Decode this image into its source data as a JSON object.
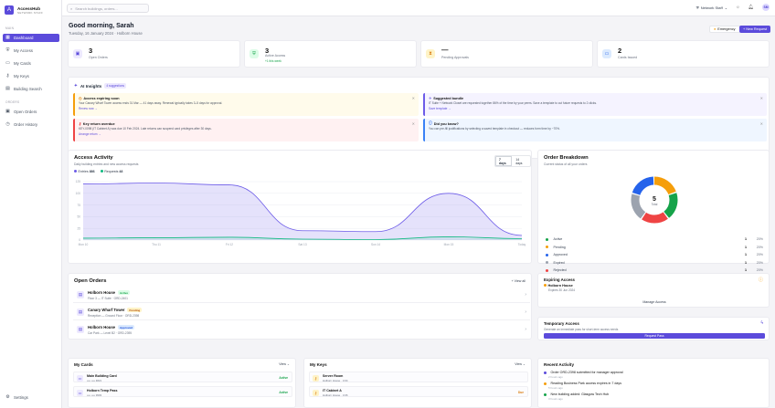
{
  "brand": {
    "name": "AccessHub",
    "sub": "NETWORK STAFF",
    "logo": "A"
  },
  "nav": {
    "main_label": "MAIN",
    "orders_label": "ORDERS",
    "items": [
      {
        "label": "Dashboard",
        "icon": "grid-icon"
      },
      {
        "label": "My Access",
        "icon": "shield-icon"
      },
      {
        "label": "My Cards",
        "icon": "card-icon"
      },
      {
        "label": "My Keys",
        "icon": "key-icon"
      },
      {
        "label": "Building Search",
        "icon": "building-icon"
      }
    ],
    "order_items": [
      {
        "label": "Open Orders",
        "icon": "clipboard-icon"
      },
      {
        "label": "Order History",
        "icon": "clock-icon"
      }
    ],
    "settings_label": "Settings"
  },
  "topbar": {
    "search_placeholder": "Search buildings, orders...",
    "staff_label": "Network Staff",
    "avatar_initials": "SM"
  },
  "header": {
    "greeting": "Good morning, Sarah",
    "subtitle": "Tuesday, 16 January 2024 · Holborn House",
    "emergency_label": "Emergency",
    "new_request_label": "+ New Request"
  },
  "stats": [
    {
      "value": "3",
      "label": "Open Orders",
      "sub": "",
      "color": "#5b4bdb",
      "bg": "#ede9fe"
    },
    {
      "value": "3",
      "label": "Active Access",
      "sub": "+1 this week",
      "color": "#16a34a",
      "bg": "#dcfce7"
    },
    {
      "value": "—",
      "label": "Pending Approvals",
      "sub": "",
      "color": "#d97706",
      "bg": "#fef3c7"
    },
    {
      "value": "2",
      "label": "Cards Issued",
      "sub": "",
      "color": "#2563eb",
      "bg": "#dbeafe"
    }
  ],
  "ai": {
    "title": "AI Insights",
    "badge": "4 suggestions",
    "insights": [
      {
        "title": "Access expiring soon",
        "text": "Your Canary Wharf Tower access ends 31 Mar — 41 days away. Renewal typically takes 3–5 days for approval.",
        "link": "Renew now →"
      },
      {
        "title": "Suggested bundle",
        "text": "IT Suite + Network Closet are requested together 86% of the time by your peers. Save a template to cut future requests to 2 clicks.",
        "link": "Save template →"
      },
      {
        "title": "Key return overdue",
        "text": "KEY-0098 (IT Cabinet A) was due 10 Feb 2024. Late returns can suspend card privileges after 30 days.",
        "link": "Arrange return →"
      },
      {
        "title": "Did you know?",
        "text": "You can pre-fill justifications by selecting a saved template in checkout — reduces form time by ~70%.",
        "link": ""
      }
    ]
  },
  "activity_chart": {
    "title": "Access Activity",
    "subtitle": "Daily building entries and new access requests",
    "toggle": [
      "7 days",
      "14 days"
    ],
    "legend": [
      {
        "label": "Entries",
        "value": "886",
        "color": "#6d5ce8"
      },
      {
        "label": "Requests",
        "value": "48",
        "color": "#10b981"
      }
    ]
  },
  "chart_data": {
    "type": "area",
    "x": [
      "Mon 10",
      "Thu 11",
      "Fri 12",
      "Sat 13",
      "Sun 14",
      "Mon 15",
      "Today"
    ],
    "y_ticks": [
      "0",
      "25",
      "50",
      "75",
      "100",
      "125"
    ],
    "ylim": [
      0,
      125
    ],
    "series": [
      {
        "name": "Entries",
        "values": [
          120,
          122,
          118,
          20,
          18,
          100,
          10
        ]
      },
      {
        "name": "Requests",
        "values": [
          4,
          5,
          6,
          2,
          1,
          7,
          3
        ]
      }
    ]
  },
  "breakdown": {
    "title": "Order Breakdown",
    "subtitle": "Current status of all your orders",
    "total": "5",
    "total_label": "Total",
    "rows": [
      {
        "label": "Active",
        "count": "1",
        "pct": "20%",
        "color": "#16a34a"
      },
      {
        "label": "Pending",
        "count": "1",
        "pct": "20%",
        "color": "#f59e0b"
      },
      {
        "label": "Approved",
        "count": "1",
        "pct": "20%",
        "color": "#2563eb"
      },
      {
        "label": "Expired",
        "count": "1",
        "pct": "20%",
        "color": "#9ca3af"
      },
      {
        "label": "Rejected",
        "count": "1",
        "pct": "20%",
        "color": "#ef4444"
      }
    ]
  },
  "open_orders": {
    "title": "Open Orders",
    "view_all": "View all",
    "rows": [
      {
        "name": "Holborn House",
        "status": "Active",
        "status_color": "#16a34a",
        "status_bg": "#dcfce7",
        "meta": "Floor 3 — IT Suite · ORD-2401"
      },
      {
        "name": "Canary Wharf Tower",
        "status": "Pending",
        "status_color": "#b45309",
        "status_bg": "#fef3c7",
        "meta": "Reception — Ground Floor · ORD-2398"
      },
      {
        "name": "Holborn House",
        "status": "Approved",
        "status_color": "#1d4ed8",
        "status_bg": "#dbeafe",
        "meta": "Car Park — Level B2 · ORD-2395"
      }
    ]
  },
  "expiring": {
    "title": "Expiring Access",
    "item_name": "Holborn House",
    "item_sub": "Expires 30 Jun 2024",
    "manage": "Manage Access"
  },
  "temp": {
    "title": "Temporary Access",
    "subtitle": "Generate an immediate pass for short-term access needs",
    "button": "Request Pass"
  },
  "cards": {
    "title": "My Cards",
    "view": "View",
    "rows": [
      {
        "name": "Main Building Card",
        "num": "•••• •••• 4821",
        "status": "Active",
        "color": "#16a34a"
      },
      {
        "name": "Holborn Temp Pass",
        "num": "•••• •••• 3903",
        "status": "Active",
        "color": "#16a34a"
      }
    ]
  },
  "keys": {
    "title": "My Keys",
    "view": "View",
    "rows": [
      {
        "name": "Server Room",
        "num": "Holborn House · 3.04",
        "status": "Active",
        "color": "#16a34a"
      },
      {
        "name": "IT Cabinet A",
        "num": "Holborn House · 3.06",
        "status": "Due",
        "color": "#d97706"
      }
    ]
  },
  "recent": {
    "title": "Recent Activity",
    "items": [
      {
        "text": "Order ORD-2398 submitted for manager approval",
        "time": "2 hours ago",
        "color": "#5b4bdb"
      },
      {
        "text": "Reading Business Park access expires in 7 days",
        "time": "5 hours ago",
        "color": "#f59e0b"
      },
      {
        "text": "New building added: Glasgow Tech Hub",
        "time": "3 hours ago",
        "color": "#16a34a"
      }
    ]
  }
}
